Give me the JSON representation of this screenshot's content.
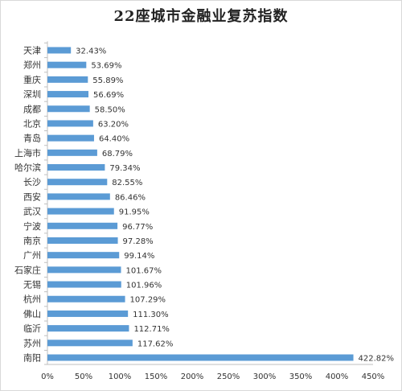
{
  "chart_data": {
    "type": "bar",
    "orientation": "horizontal",
    "title": "22座城市金融业复苏指数",
    "xlabel": "",
    "ylabel": "",
    "grid": false,
    "legend": "none",
    "xlim": [
      0,
      450
    ],
    "x_ticks": [
      0,
      50,
      100,
      150,
      200,
      250,
      300,
      350,
      400,
      450
    ],
    "x_tick_labels": [
      "0%",
      "50%",
      "100%",
      "150%",
      "200%",
      "250%",
      "300%",
      "350%",
      "400%",
      "450%"
    ],
    "categories": [
      "天津",
      "郑州",
      "重庆",
      "深圳",
      "成都",
      "北京",
      "青岛",
      "上海市",
      "哈尔滨",
      "长沙",
      "西安",
      "武汉",
      "宁波",
      "南京",
      "广州",
      "石家庄",
      "无锡",
      "杭州",
      "佛山",
      "临沂",
      "苏州",
      "南阳"
    ],
    "values": [
      32.43,
      53.69,
      55.89,
      56.69,
      58.5,
      63.2,
      64.4,
      68.79,
      79.34,
      82.55,
      86.46,
      91.95,
      96.77,
      97.28,
      99.14,
      101.67,
      101.96,
      107.29,
      111.3,
      112.71,
      117.62,
      422.82
    ],
    "value_labels": [
      "32.43%",
      "53.69%",
      "55.89%",
      "56.69%",
      "58.50%",
      "63.20%",
      "64.40%",
      "68.79%",
      "79.34%",
      "82.55%",
      "86.46%",
      "91.95%",
      "96.77%",
      "97.28%",
      "99.14%",
      "101.67%",
      "101.96%",
      "107.29%",
      "111.30%",
      "112.71%",
      "117.62%",
      "422.82%"
    ],
    "bar_color": "#5b9bd5"
  }
}
